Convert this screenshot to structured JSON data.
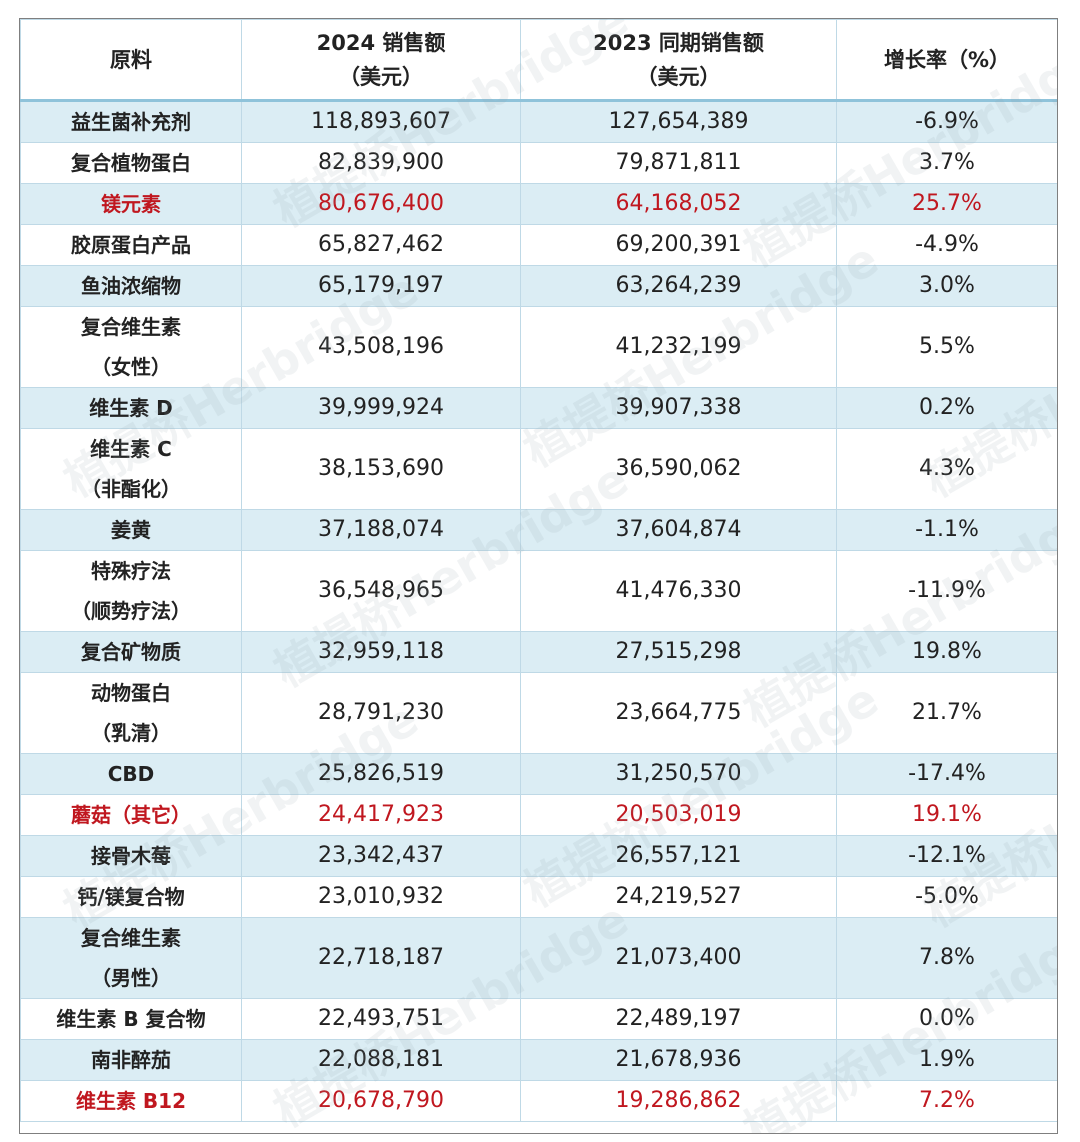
{
  "table": {
    "headers": [
      {
        "line1": "原料",
        "line2": ""
      },
      {
        "line1": "2024 销售额",
        "line2": "（美元）"
      },
      {
        "line1": "2023 同期销售额",
        "line2": "（美元）"
      },
      {
        "line1": "增长率（%）",
        "line2": ""
      }
    ],
    "rows": [
      {
        "name": [
          "益生菌补充剂"
        ],
        "sales_2024": "118,893,607",
        "sales_2023": "127,654,389",
        "growth": "-6.9%",
        "highlight": false,
        "shaded": true
      },
      {
        "name": [
          "复合植物蛋白"
        ],
        "sales_2024": "82,839,900",
        "sales_2023": "79,871,811",
        "growth": "3.7%",
        "highlight": false,
        "shaded": false
      },
      {
        "name": [
          "镁元素"
        ],
        "sales_2024": "80,676,400",
        "sales_2023": "64,168,052",
        "growth": "25.7%",
        "highlight": true,
        "shaded": true
      },
      {
        "name": [
          "胶原蛋白产品"
        ],
        "sales_2024": "65,827,462",
        "sales_2023": "69,200,391",
        "growth": "-4.9%",
        "highlight": false,
        "shaded": false
      },
      {
        "name": [
          "鱼油浓缩物"
        ],
        "sales_2024": "65,179,197",
        "sales_2023": "63,264,239",
        "growth": "3.0%",
        "highlight": false,
        "shaded": true
      },
      {
        "name": [
          "复合维生素",
          "（女性）"
        ],
        "sales_2024": "43,508,196",
        "sales_2023": "41,232,199",
        "growth": "5.5%",
        "highlight": false,
        "shaded": false
      },
      {
        "name": [
          "维生素 D"
        ],
        "sales_2024": "39,999,924",
        "sales_2023": "39,907,338",
        "growth": "0.2%",
        "highlight": false,
        "shaded": true
      },
      {
        "name": [
          "维生素 C",
          "（非酯化）"
        ],
        "sales_2024": "38,153,690",
        "sales_2023": "36,590,062",
        "growth": "4.3%",
        "highlight": false,
        "shaded": false
      },
      {
        "name": [
          "姜黄"
        ],
        "sales_2024": "37,188,074",
        "sales_2023": "37,604,874",
        "growth": "-1.1%",
        "highlight": false,
        "shaded": true
      },
      {
        "name": [
          "特殊疗法",
          "（顺势疗法）"
        ],
        "sales_2024": "36,548,965",
        "sales_2023": "41,476,330",
        "growth": "-11.9%",
        "highlight": false,
        "shaded": false
      },
      {
        "name": [
          "复合矿物质"
        ],
        "sales_2024": "32,959,118",
        "sales_2023": "27,515,298",
        "growth": "19.8%",
        "highlight": false,
        "shaded": true
      },
      {
        "name": [
          "动物蛋白",
          "（乳清）"
        ],
        "sales_2024": "28,791,230",
        "sales_2023": "23,664,775",
        "growth": "21.7%",
        "highlight": false,
        "shaded": false
      },
      {
        "name": [
          "CBD"
        ],
        "sales_2024": "25,826,519",
        "sales_2023": "31,250,570",
        "growth": "-17.4%",
        "highlight": false,
        "shaded": true
      },
      {
        "name": [
          "蘑菇（其它）"
        ],
        "sales_2024": "24,417,923",
        "sales_2023": "20,503,019",
        "growth": "19.1%",
        "highlight": true,
        "shaded": false
      },
      {
        "name": [
          "接骨木莓"
        ],
        "sales_2024": "23,342,437",
        "sales_2023": "26,557,121",
        "growth": "-12.1%",
        "highlight": false,
        "shaded": true
      },
      {
        "name": [
          "钙/镁复合物"
        ],
        "sales_2024": "23,010,932",
        "sales_2023": "24,219,527",
        "growth": "-5.0%",
        "highlight": false,
        "shaded": false
      },
      {
        "name": [
          "复合维生素",
          "（男性）"
        ],
        "sales_2024": "22,718,187",
        "sales_2023": "21,073,400",
        "growth": "7.8%",
        "highlight": false,
        "shaded": true
      },
      {
        "name": [
          "维生素 B 复合物"
        ],
        "sales_2024": "22,493,751",
        "sales_2023": "22,489,197",
        "growth": "0.0%",
        "highlight": false,
        "shaded": false
      },
      {
        "name": [
          "南非醉茄"
        ],
        "sales_2024": "22,088,181",
        "sales_2023": "21,678,936",
        "growth": "1.9%",
        "highlight": false,
        "shaded": true
      },
      {
        "name": [
          "维生素 B12"
        ],
        "sales_2024": "20,678,790",
        "sales_2023": "19,286,862",
        "growth": "7.2%",
        "highlight": true,
        "shaded": false
      }
    ]
  },
  "watermark": {
    "text": "植提桥Herbridge",
    "color": "#96a0aa"
  },
  "colors": {
    "highlight_text": "#c0171f",
    "row_shade": "#dbedf4",
    "grid_line": "#bfd9e6"
  }
}
